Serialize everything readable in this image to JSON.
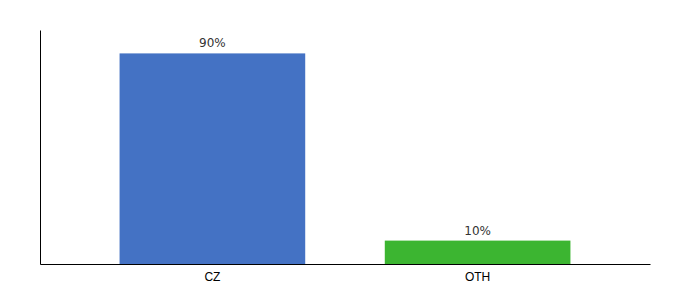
{
  "chart_data": {
    "type": "bar",
    "categories": [
      "CZ",
      "OTH"
    ],
    "values": [
      90,
      10
    ],
    "value_labels": [
      "90%",
      "10%"
    ],
    "colors": [
      "#4472c4",
      "#3cb531"
    ],
    "ylim": [
      0,
      100
    ],
    "yticks": [],
    "data_labels": true,
    "tick_labels": "x"
  }
}
